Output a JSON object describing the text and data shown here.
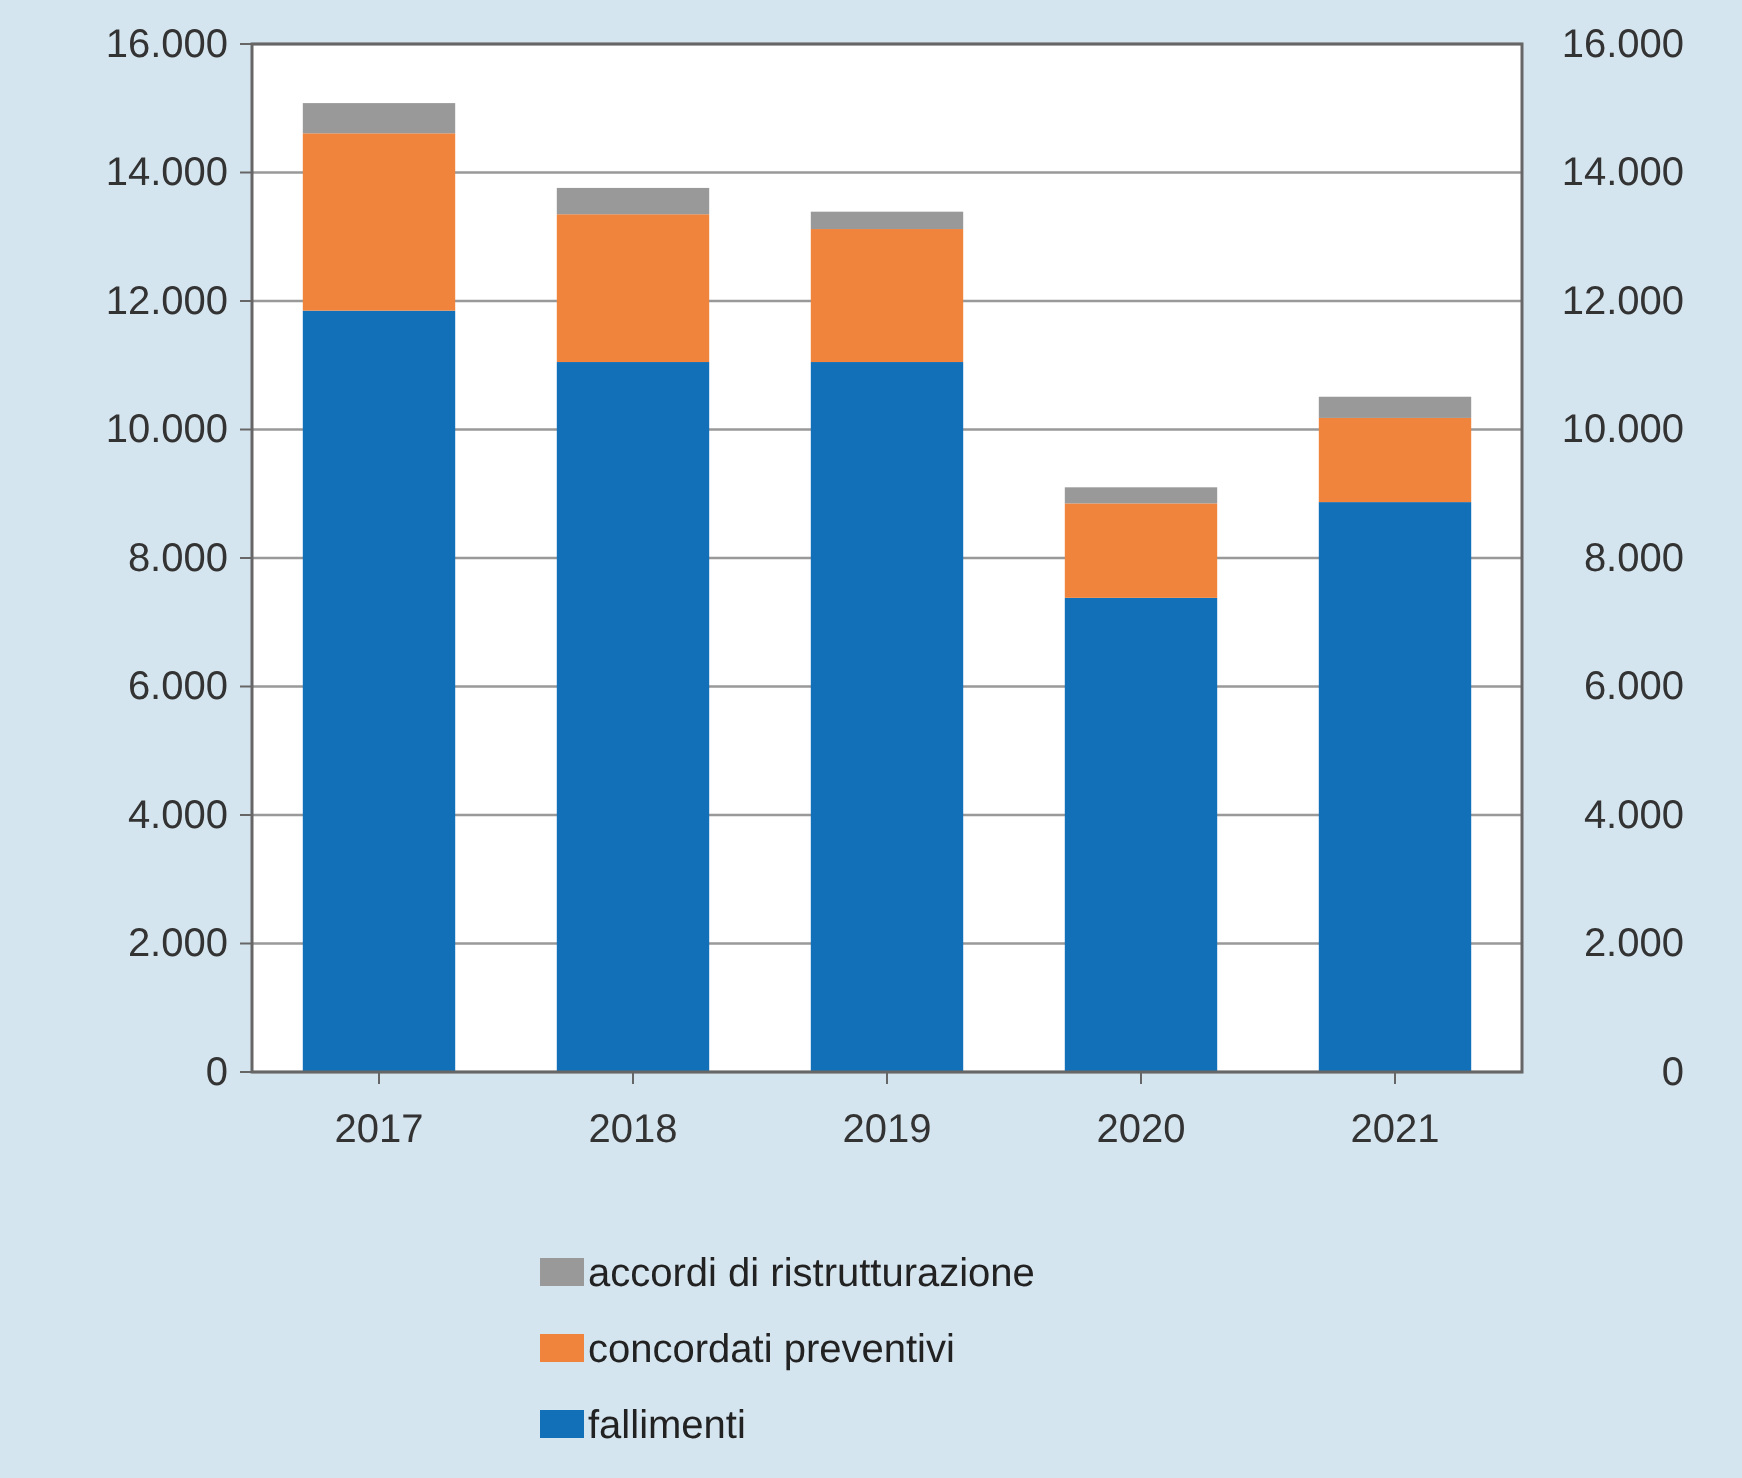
{
  "chart_data": {
    "type": "bar",
    "stacked": true,
    "categories": [
      "2017",
      "2018",
      "2019",
      "2020",
      "2021"
    ],
    "series": [
      {
        "name": "fallimenti",
        "color": "#1170b8",
        "values": [
          11850,
          11050,
          11050,
          7380,
          8870
        ]
      },
      {
        "name": "concordati preventivi",
        "color": "#f0843c",
        "values": [
          2760,
          2300,
          2070,
          1470,
          1310
        ]
      },
      {
        "name": "accordi di ristrutturazione",
        "color": "#999999",
        "values": [
          470,
          410,
          270,
          250,
          330
        ]
      }
    ],
    "ylim": [
      0,
      16000
    ],
    "yticks": [
      0,
      {
        "value": 2000,
        "label": "2.000"
      },
      {
        "value": 4000,
        "label": "4.000"
      },
      {
        "value": 6000,
        "label": "6.000"
      },
      {
        "value": 8000,
        "label": "8.000"
      },
      {
        "value": 10000,
        "label": "10.000"
      },
      {
        "value": 12000,
        "label": "12.000"
      },
      {
        "value": 14000,
        "label": "14.000"
      },
      {
        "value": 16000,
        "label": "16.000"
      }
    ],
    "y2lim": [
      0,
      16000
    ],
    "y2ticks": [
      0,
      {
        "value": 2000,
        "label": "2.000"
      },
      {
        "value": 4000,
        "label": "4.000"
      },
      {
        "value": 6000,
        "label": "6.000"
      },
      {
        "value": 8000,
        "label": "8.000"
      },
      {
        "value": 10000,
        "label": "10.000"
      },
      {
        "value": 12000,
        "label": "12.000"
      },
      {
        "value": 14000,
        "label": "14.000"
      },
      {
        "value": 16000,
        "label": "16.000"
      }
    ],
    "grid": "y",
    "legend": "bottom"
  }
}
